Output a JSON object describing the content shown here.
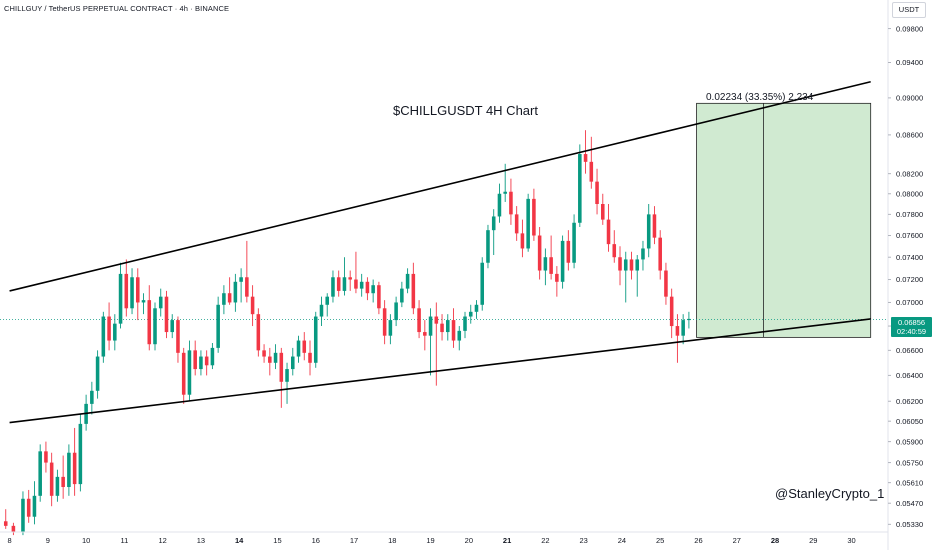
{
  "header": {
    "symbol_line": "CHILLGUY / TetherUS PERPETUAL CONTRACT · 4h · BINANCE"
  },
  "axis": {
    "currency": "USDT",
    "current_price": "0.06856",
    "countdown": "02:40:59"
  },
  "annotations": {
    "title": "$CHILLGUSDT 4H Chart",
    "measure": "0.02234 (33.35%) 2,234",
    "author": "@StanleyCrypto_1"
  },
  "colors": {
    "bull": "#089981",
    "bear": "#f23645",
    "target_zone": "#c8e6c9",
    "trendline": "#000000",
    "price_line": "#089981"
  },
  "chart_data": {
    "type": "candlestick",
    "title": "$CHILLGUSDT 4H Chart",
    "timeframe": "4h",
    "x_ticks": [
      "8",
      "9",
      "10",
      "11",
      "12",
      "13",
      "14",
      "15",
      "16",
      "17",
      "18",
      "19",
      "20",
      "21",
      "22",
      "23",
      "24",
      "25",
      "26",
      "27",
      "28",
      "29",
      "30"
    ],
    "bold_x_ticks": [
      "14",
      "21",
      "28"
    ],
    "y_ticks": [
      "0.09800",
      "0.09400",
      "0.09000",
      "0.08600",
      "0.08200",
      "0.08000",
      "0.07800",
      "0.07600",
      "0.07400",
      "0.07200",
      "0.07000",
      "0.06800",
      "0.06600",
      "0.06400",
      "0.06200",
      "0.06050",
      "0.05900",
      "0.05750",
      "0.05610",
      "0.05470",
      "0.05330"
    ],
    "y_scale": "log",
    "ylim": [
      0.0528,
      0.1015
    ],
    "xlim": [
      7.75,
      30.9
    ],
    "last_price": 0.06856,
    "grid": false,
    "candles": [
      {
        "t": 7.9,
        "o": 0.0535,
        "h": 0.0543,
        "l": 0.053,
        "c": 0.0532
      },
      {
        "t": 8.1,
        "o": 0.0532,
        "h": 0.0534,
        "l": 0.0526,
        "c": 0.0528
      },
      {
        "t": 8.35,
        "o": 0.0528,
        "h": 0.0555,
        "l": 0.0526,
        "c": 0.055
      },
      {
        "t": 8.5,
        "o": 0.055,
        "h": 0.0556,
        "l": 0.0534,
        "c": 0.0538
      },
      {
        "t": 8.65,
        "o": 0.0538,
        "h": 0.0562,
        "l": 0.0533,
        "c": 0.0552
      },
      {
        "t": 8.8,
        "o": 0.0552,
        "h": 0.0588,
        "l": 0.0548,
        "c": 0.0583
      },
      {
        "t": 8.95,
        "o": 0.0583,
        "h": 0.059,
        "l": 0.0568,
        "c": 0.0575
      },
      {
        "t": 9.1,
        "o": 0.0575,
        "h": 0.0582,
        "l": 0.0545,
        "c": 0.0552
      },
      {
        "t": 9.25,
        "o": 0.0552,
        "h": 0.057,
        "l": 0.0548,
        "c": 0.0565
      },
      {
        "t": 9.4,
        "o": 0.0565,
        "h": 0.058,
        "l": 0.055,
        "c": 0.0558
      },
      {
        "t": 9.55,
        "o": 0.0558,
        "h": 0.0588,
        "l": 0.0552,
        "c": 0.0582
      },
      {
        "t": 9.7,
        "o": 0.0582,
        "h": 0.06,
        "l": 0.0552,
        "c": 0.056
      },
      {
        "t": 9.85,
        "o": 0.056,
        "h": 0.061,
        "l": 0.0555,
        "c": 0.0603
      },
      {
        "t": 10.0,
        "o": 0.0603,
        "h": 0.0625,
        "l": 0.0598,
        "c": 0.0618
      },
      {
        "t": 10.15,
        "o": 0.0618,
        "h": 0.0635,
        "l": 0.061,
        "c": 0.0628
      },
      {
        "t": 10.3,
        "o": 0.0628,
        "h": 0.066,
        "l": 0.0622,
        "c": 0.0655
      },
      {
        "t": 10.45,
        "o": 0.0655,
        "h": 0.0692,
        "l": 0.065,
        "c": 0.0688
      },
      {
        "t": 10.6,
        "o": 0.0688,
        "h": 0.07,
        "l": 0.066,
        "c": 0.0668
      },
      {
        "t": 10.75,
        "o": 0.0668,
        "h": 0.069,
        "l": 0.066,
        "c": 0.0682
      },
      {
        "t": 10.9,
        "o": 0.0682,
        "h": 0.0735,
        "l": 0.0678,
        "c": 0.0725
      },
      {
        "t": 11.05,
        "o": 0.0725,
        "h": 0.0738,
        "l": 0.0688,
        "c": 0.0695
      },
      {
        "t": 11.2,
        "o": 0.0695,
        "h": 0.073,
        "l": 0.069,
        "c": 0.0722
      },
      {
        "t": 11.35,
        "o": 0.0722,
        "h": 0.073,
        "l": 0.0685,
        "c": 0.07
      },
      {
        "t": 11.5,
        "o": 0.07,
        "h": 0.0708,
        "l": 0.069,
        "c": 0.0702
      },
      {
        "t": 11.65,
        "o": 0.0702,
        "h": 0.0715,
        "l": 0.066,
        "c": 0.0665
      },
      {
        "t": 11.8,
        "o": 0.0665,
        "h": 0.07,
        "l": 0.066,
        "c": 0.0695
      },
      {
        "t": 11.95,
        "o": 0.0695,
        "h": 0.0712,
        "l": 0.0688,
        "c": 0.0705
      },
      {
        "t": 12.1,
        "o": 0.0705,
        "h": 0.071,
        "l": 0.067,
        "c": 0.0675
      },
      {
        "t": 12.25,
        "o": 0.0675,
        "h": 0.069,
        "l": 0.067,
        "c": 0.0685
      },
      {
        "t": 12.4,
        "o": 0.0685,
        "h": 0.0688,
        "l": 0.065,
        "c": 0.0658
      },
      {
        "t": 12.55,
        "o": 0.0658,
        "h": 0.0662,
        "l": 0.0618,
        "c": 0.0625
      },
      {
        "t": 12.7,
        "o": 0.0625,
        "h": 0.0668,
        "l": 0.062,
        "c": 0.066
      },
      {
        "t": 12.85,
        "o": 0.066,
        "h": 0.0668,
        "l": 0.064,
        "c": 0.0645
      },
      {
        "t": 13.0,
        "o": 0.0645,
        "h": 0.066,
        "l": 0.064,
        "c": 0.0655
      },
      {
        "t": 13.15,
        "o": 0.0655,
        "h": 0.066,
        "l": 0.064,
        "c": 0.0648
      },
      {
        "t": 13.3,
        "o": 0.0648,
        "h": 0.0666,
        "l": 0.0645,
        "c": 0.0662
      },
      {
        "t": 13.45,
        "o": 0.0662,
        "h": 0.0705,
        "l": 0.0658,
        "c": 0.0698
      },
      {
        "t": 13.6,
        "o": 0.0698,
        "h": 0.0715,
        "l": 0.069,
        "c": 0.0708
      },
      {
        "t": 13.75,
        "o": 0.0708,
        "h": 0.0722,
        "l": 0.0698,
        "c": 0.07
      },
      {
        "t": 13.9,
        "o": 0.07,
        "h": 0.0725,
        "l": 0.0692,
        "c": 0.0718
      },
      {
        "t": 14.05,
        "o": 0.0718,
        "h": 0.073,
        "l": 0.07,
        "c": 0.0722
      },
      {
        "t": 14.2,
        "o": 0.0722,
        "h": 0.0755,
        "l": 0.07,
        "c": 0.0705
      },
      {
        "t": 14.35,
        "o": 0.0705,
        "h": 0.0715,
        "l": 0.068,
        "c": 0.069
      },
      {
        "t": 14.5,
        "o": 0.069,
        "h": 0.0695,
        "l": 0.0655,
        "c": 0.066
      },
      {
        "t": 14.65,
        "o": 0.066,
        "h": 0.0665,
        "l": 0.065,
        "c": 0.0655
      },
      {
        "t": 14.8,
        "o": 0.0655,
        "h": 0.0662,
        "l": 0.064,
        "c": 0.065
      },
      {
        "t": 14.95,
        "o": 0.065,
        "h": 0.0665,
        "l": 0.0645,
        "c": 0.0658
      },
      {
        "t": 15.1,
        "o": 0.0658,
        "h": 0.0662,
        "l": 0.0615,
        "c": 0.0635
      },
      {
        "t": 15.25,
        "o": 0.0635,
        "h": 0.065,
        "l": 0.0618,
        "c": 0.0645
      },
      {
        "t": 15.4,
        "o": 0.0645,
        "h": 0.0662,
        "l": 0.064,
        "c": 0.0655
      },
      {
        "t": 15.55,
        "o": 0.0655,
        "h": 0.0672,
        "l": 0.065,
        "c": 0.0668
      },
      {
        "t": 15.7,
        "o": 0.0668,
        "h": 0.0675,
        "l": 0.0652,
        "c": 0.0658
      },
      {
        "t": 15.85,
        "o": 0.0658,
        "h": 0.0668,
        "l": 0.064,
        "c": 0.065
      },
      {
        "t": 16.0,
        "o": 0.065,
        "h": 0.0692,
        "l": 0.0646,
        "c": 0.0688
      },
      {
        "t": 16.15,
        "o": 0.0688,
        "h": 0.0705,
        "l": 0.068,
        "c": 0.0698
      },
      {
        "t": 16.3,
        "o": 0.0698,
        "h": 0.0708,
        "l": 0.0688,
        "c": 0.0705
      },
      {
        "t": 16.45,
        "o": 0.0705,
        "h": 0.0728,
        "l": 0.07,
        "c": 0.0722
      },
      {
        "t": 16.6,
        "o": 0.0722,
        "h": 0.0728,
        "l": 0.0705,
        "c": 0.071
      },
      {
        "t": 16.75,
        "o": 0.071,
        "h": 0.074,
        "l": 0.0706,
        "c": 0.0722
      },
      {
        "t": 16.9,
        "o": 0.0722,
        "h": 0.0728,
        "l": 0.071,
        "c": 0.072
      },
      {
        "t": 17.05,
        "o": 0.072,
        "h": 0.0745,
        "l": 0.0708,
        "c": 0.0712
      },
      {
        "t": 17.2,
        "o": 0.0712,
        "h": 0.0725,
        "l": 0.0705,
        "c": 0.0718
      },
      {
        "t": 17.35,
        "o": 0.0718,
        "h": 0.0722,
        "l": 0.0702,
        "c": 0.0708
      },
      {
        "t": 17.5,
        "o": 0.0708,
        "h": 0.072,
        "l": 0.07,
        "c": 0.0715
      },
      {
        "t": 17.65,
        "o": 0.0715,
        "h": 0.0718,
        "l": 0.069,
        "c": 0.0695
      },
      {
        "t": 17.8,
        "o": 0.0695,
        "h": 0.0702,
        "l": 0.0665,
        "c": 0.0672
      },
      {
        "t": 17.95,
        "o": 0.0672,
        "h": 0.069,
        "l": 0.0665,
        "c": 0.0685
      },
      {
        "t": 18.1,
        "o": 0.0685,
        "h": 0.0705,
        "l": 0.068,
        "c": 0.07
      },
      {
        "t": 18.25,
        "o": 0.07,
        "h": 0.0718,
        "l": 0.0696,
        "c": 0.0712
      },
      {
        "t": 18.4,
        "o": 0.0712,
        "h": 0.073,
        "l": 0.0708,
        "c": 0.0725
      },
      {
        "t": 18.55,
        "o": 0.0725,
        "h": 0.0735,
        "l": 0.069,
        "c": 0.0695
      },
      {
        "t": 18.7,
        "o": 0.0695,
        "h": 0.0702,
        "l": 0.067,
        "c": 0.0675
      },
      {
        "t": 18.85,
        "o": 0.0675,
        "h": 0.0685,
        "l": 0.066,
        "c": 0.0672
      },
      {
        "t": 19.0,
        "o": 0.0672,
        "h": 0.0695,
        "l": 0.064,
        "c": 0.0688
      },
      {
        "t": 19.15,
        "o": 0.0688,
        "h": 0.07,
        "l": 0.0632,
        "c": 0.0682
      },
      {
        "t": 19.3,
        "o": 0.0682,
        "h": 0.069,
        "l": 0.0668,
        "c": 0.0675
      },
      {
        "t": 19.45,
        "o": 0.0675,
        "h": 0.069,
        "l": 0.0668,
        "c": 0.0685
      },
      {
        "t": 19.6,
        "o": 0.0685,
        "h": 0.0695,
        "l": 0.0662,
        "c": 0.0668
      },
      {
        "t": 19.75,
        "o": 0.0668,
        "h": 0.068,
        "l": 0.066,
        "c": 0.0676
      },
      {
        "t": 19.9,
        "o": 0.0676,
        "h": 0.0692,
        "l": 0.067,
        "c": 0.0688
      },
      {
        "t": 20.05,
        "o": 0.0688,
        "h": 0.0698,
        "l": 0.0682,
        "c": 0.0692
      },
      {
        "t": 20.2,
        "o": 0.0692,
        "h": 0.0702,
        "l": 0.0686,
        "c": 0.0698
      },
      {
        "t": 20.35,
        "o": 0.0698,
        "h": 0.074,
        "l": 0.0693,
        "c": 0.0735
      },
      {
        "t": 20.5,
        "o": 0.0735,
        "h": 0.077,
        "l": 0.073,
        "c": 0.0765
      },
      {
        "t": 20.65,
        "o": 0.0765,
        "h": 0.0785,
        "l": 0.0742,
        "c": 0.0778
      },
      {
        "t": 20.8,
        "o": 0.0778,
        "h": 0.081,
        "l": 0.0772,
        "c": 0.08
      },
      {
        "t": 20.95,
        "o": 0.08,
        "h": 0.083,
        "l": 0.0792,
        "c": 0.0802
      },
      {
        "t": 21.1,
        "o": 0.0802,
        "h": 0.0815,
        "l": 0.077,
        "c": 0.078
      },
      {
        "t": 21.25,
        "o": 0.078,
        "h": 0.0788,
        "l": 0.0755,
        "c": 0.0762
      },
      {
        "t": 21.4,
        "o": 0.0762,
        "h": 0.0775,
        "l": 0.074,
        "c": 0.0748
      },
      {
        "t": 21.55,
        "o": 0.0748,
        "h": 0.08,
        "l": 0.0745,
        "c": 0.0795
      },
      {
        "t": 21.7,
        "o": 0.0795,
        "h": 0.0805,
        "l": 0.0755,
        "c": 0.076
      },
      {
        "t": 21.85,
        "o": 0.076,
        "h": 0.0768,
        "l": 0.072,
        "c": 0.0728
      },
      {
        "t": 22.0,
        "o": 0.0728,
        "h": 0.0748,
        "l": 0.0715,
        "c": 0.074
      },
      {
        "t": 22.15,
        "o": 0.074,
        "h": 0.076,
        "l": 0.072,
        "c": 0.0725
      },
      {
        "t": 22.3,
        "o": 0.0725,
        "h": 0.0732,
        "l": 0.0705,
        "c": 0.0718
      },
      {
        "t": 22.45,
        "o": 0.0718,
        "h": 0.076,
        "l": 0.0712,
        "c": 0.0755
      },
      {
        "t": 22.6,
        "o": 0.0755,
        "h": 0.0765,
        "l": 0.0728,
        "c": 0.0735
      },
      {
        "t": 22.75,
        "o": 0.0735,
        "h": 0.078,
        "l": 0.073,
        "c": 0.0772
      },
      {
        "t": 22.9,
        "o": 0.0772,
        "h": 0.085,
        "l": 0.0768,
        "c": 0.084
      },
      {
        "t": 23.05,
        "o": 0.084,
        "h": 0.0865,
        "l": 0.082,
        "c": 0.0832
      },
      {
        "t": 23.2,
        "o": 0.0832,
        "h": 0.0858,
        "l": 0.0805,
        "c": 0.0812
      },
      {
        "t": 23.35,
        "o": 0.0812,
        "h": 0.0825,
        "l": 0.078,
        "c": 0.079
      },
      {
        "t": 23.5,
        "o": 0.079,
        "h": 0.08,
        "l": 0.077,
        "c": 0.0775
      },
      {
        "t": 23.65,
        "o": 0.0775,
        "h": 0.079,
        "l": 0.0745,
        "c": 0.0752
      },
      {
        "t": 23.8,
        "o": 0.0752,
        "h": 0.0765,
        "l": 0.0735,
        "c": 0.074
      },
      {
        "t": 23.95,
        "o": 0.074,
        "h": 0.075,
        "l": 0.0715,
        "c": 0.0728
      },
      {
        "t": 24.1,
        "o": 0.0728,
        "h": 0.0745,
        "l": 0.07,
        "c": 0.0738
      },
      {
        "t": 24.25,
        "o": 0.0738,
        "h": 0.0745,
        "l": 0.072,
        "c": 0.0728
      },
      {
        "t": 24.4,
        "o": 0.0728,
        "h": 0.0742,
        "l": 0.0705,
        "c": 0.0738
      },
      {
        "t": 24.55,
        "o": 0.0738,
        "h": 0.0755,
        "l": 0.0728,
        "c": 0.0748
      },
      {
        "t": 24.7,
        "o": 0.0748,
        "h": 0.079,
        "l": 0.074,
        "c": 0.078
      },
      {
        "t": 24.85,
        "o": 0.078,
        "h": 0.0788,
        "l": 0.0752,
        "c": 0.0758
      },
      {
        "t": 25.0,
        "o": 0.0758,
        "h": 0.0765,
        "l": 0.072,
        "c": 0.0728
      },
      {
        "t": 25.15,
        "o": 0.0728,
        "h": 0.0735,
        "l": 0.0698,
        "c": 0.0705
      },
      {
        "t": 25.3,
        "o": 0.0705,
        "h": 0.0712,
        "l": 0.067,
        "c": 0.068
      },
      {
        "t": 25.45,
        "o": 0.068,
        "h": 0.069,
        "l": 0.065,
        "c": 0.0672
      },
      {
        "t": 25.6,
        "o": 0.0672,
        "h": 0.069,
        "l": 0.0665,
        "c": 0.0685
      },
      {
        "t": 25.75,
        "o": 0.0685,
        "h": 0.0692,
        "l": 0.0678,
        "c": 0.0686
      }
    ],
    "trendlines": [
      {
        "x1": 8.0,
        "y1": 0.071,
        "x2": 30.5,
        "y2": 0.0918,
        "role": "upper channel"
      },
      {
        "x1": 8.0,
        "y1": 0.0604,
        "x2": 30.5,
        "y2": 0.0686,
        "role": "lower channel"
      }
    ],
    "target_box": {
      "x_start": 25.95,
      "x_end": 30.5,
      "y_bottom": 0.06706,
      "y_top": 0.0894,
      "measure_line_x": 27.7,
      "label": "0.02234 (33.35%) 2,234"
    }
  }
}
